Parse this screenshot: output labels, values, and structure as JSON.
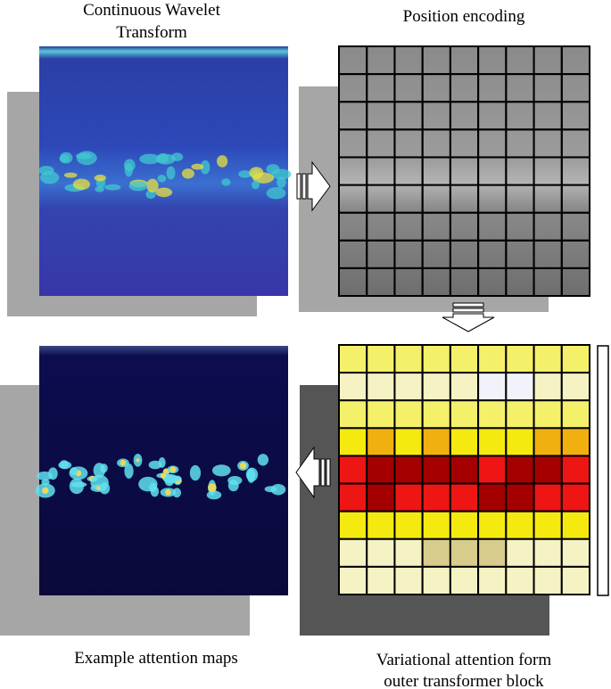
{
  "panels": [
    {
      "label_lines": [
        "Continuous Wavelet",
        "Transform"
      ]
    },
    {
      "label_lines": [
        "Position encoding"
      ]
    },
    {
      "label_lines": [
        "Example attention maps"
      ]
    },
    {
      "label_lines": [
        "Variational attention form",
        "outer transformer block"
      ]
    }
  ]
}
